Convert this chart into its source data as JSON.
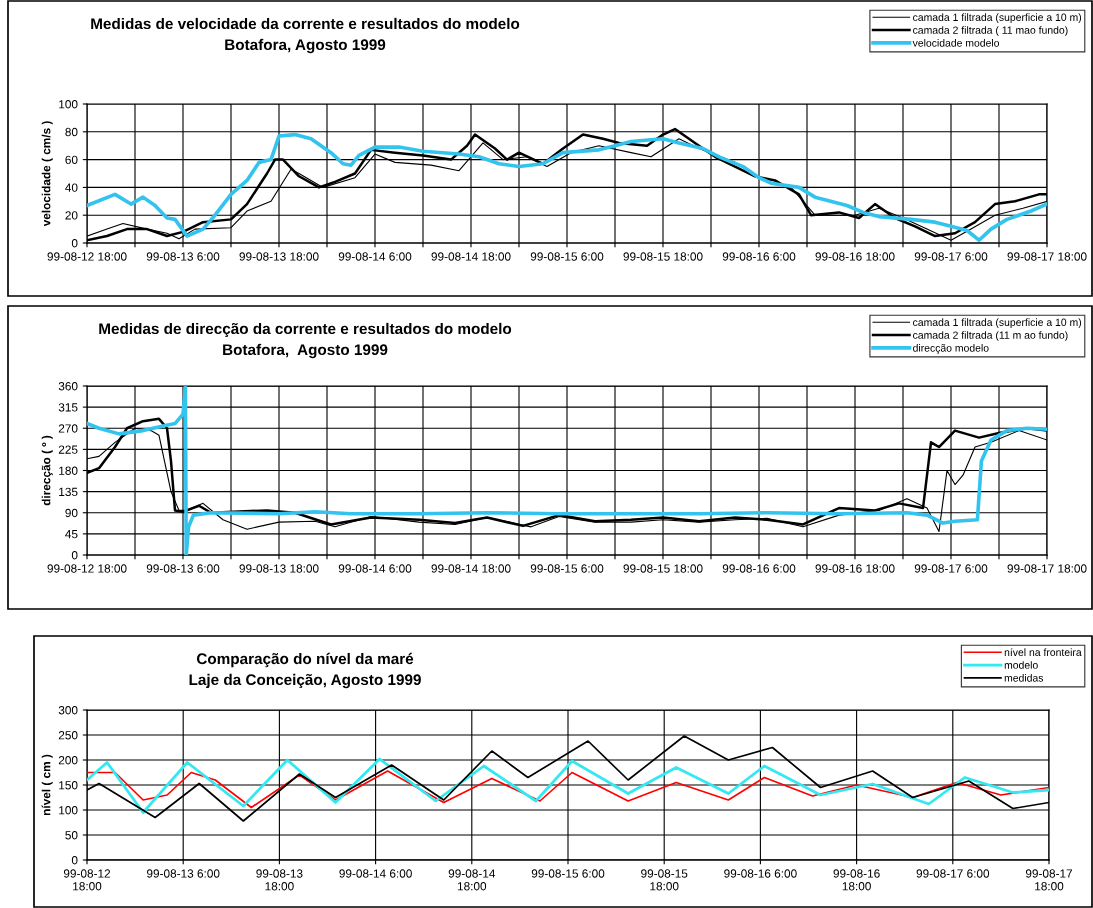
{
  "chart_data": [
    {
      "type": "line",
      "title": "Medidas de velocidade da corrente e resultados do modelo",
      "subtitle": "Botafora, Agosto 1999",
      "ylabel": "velocidade ( cm/s )",
      "xlim": [
        "1999-08-12T18:00",
        "1999-08-17T18:00"
      ],
      "xticks": [
        {
          "value": "1999-08-12T18:00",
          "label": "99-08-12 18:00"
        },
        {
          "value": "1999-08-13T00:00",
          "label": null
        },
        {
          "value": "1999-08-13T06:00",
          "label": "99-08-13 6:00"
        },
        {
          "value": "1999-08-13T12:00",
          "label": null
        },
        {
          "value": "1999-08-13T18:00",
          "label": "99-08-13 18:00"
        },
        {
          "value": "1999-08-14T00:00",
          "label": null
        },
        {
          "value": "1999-08-14T06:00",
          "label": "99-08-14 6:00"
        },
        {
          "value": "1999-08-14T12:00",
          "label": null
        },
        {
          "value": "1999-08-14T18:00",
          "label": "99-08-14 18:00"
        },
        {
          "value": "1999-08-15T00:00",
          "label": null
        },
        {
          "value": "1999-08-15T06:00",
          "label": "99-08-15 6:00"
        },
        {
          "value": "1999-08-15T12:00",
          "label": null
        },
        {
          "value": "1999-08-15T18:00",
          "label": "99-08-15 18:00"
        },
        {
          "value": "1999-08-16T00:00",
          "label": null
        },
        {
          "value": "1999-08-16T06:00",
          "label": "99-08-16 6:00"
        },
        {
          "value": "1999-08-16T12:00",
          "label": null
        },
        {
          "value": "1999-08-16T18:00",
          "label": "99-08-16 18:00"
        },
        {
          "value": "1999-08-17T00:00",
          "label": null
        },
        {
          "value": "1999-08-17T06:00",
          "label": "99-08-17 6:00"
        },
        {
          "value": "1999-08-17T12:00",
          "label": null
        },
        {
          "value": "1999-08-17T18:00",
          "label": "99-08-17 18:00"
        }
      ],
      "ylim": [
        0,
        100
      ],
      "yticks": [
        0,
        20,
        40,
        60,
        80,
        100
      ],
      "grid": true,
      "legend": "top right",
      "marker": "none",
      "line_style": "solid",
      "series": [
        {
          "name": "camada 1 filtrada (superficie a 10 m)",
          "color": "#000000",
          "x": [
            "1999-08-12T18:00",
            "1999-08-12T20:30",
            "1999-08-12T22:30",
            "1999-08-13T01:30",
            "1999-08-13T04:00",
            "1999-08-13T05:30",
            "1999-08-13T07:30",
            "1999-08-13T12:00",
            "1999-08-13T14:00",
            "1999-08-13T17:00",
            "1999-08-13T19:30",
            "1999-08-13T20:30",
            "1999-08-13T23:30",
            "1999-08-14T03:30",
            "1999-08-14T06:00",
            "1999-08-14T08:30",
            "1999-08-14T13:00",
            "1999-08-14T16:30",
            "1999-08-14T19:30",
            "1999-08-14T22:00",
            "1999-08-15T01:00",
            "1999-08-15T03:30",
            "1999-08-15T06:30",
            "1999-08-15T10:00",
            "1999-08-15T14:00",
            "1999-08-15T16:30",
            "1999-08-15T20:00",
            "1999-08-15T22:30",
            "1999-08-16T03:00",
            "1999-08-16T06:30",
            "1999-08-16T10:00",
            "1999-08-16T13:00",
            "1999-08-16T18:00",
            "1999-08-16T21:00",
            "1999-08-17T00:00",
            "1999-08-17T03:00",
            "1999-08-17T06:00",
            "1999-08-17T08:30",
            "1999-08-17T11:30",
            "1999-08-17T15:00",
            "1999-08-17T18:00"
          ],
          "values": [
            5,
            10,
            14,
            10,
            7,
            3,
            10,
            11,
            23,
            30,
            53,
            50,
            40,
            47,
            64,
            58,
            56,
            52,
            72,
            60,
            62,
            55,
            65,
            70,
            65,
            62,
            75,
            68,
            58,
            45,
            40,
            20,
            20,
            25,
            18,
            10,
            2,
            10,
            20,
            25,
            30
          ]
        },
        {
          "name": "camada 2 filtrada ( 11 mao fundo)",
          "color": "#000000",
          "x": [
            "1999-08-12T18:00",
            "1999-08-12T20:30",
            "1999-08-12T23:00",
            "1999-08-13T01:30",
            "1999-08-13T04:00",
            "1999-08-13T06:00",
            "1999-08-13T08:30",
            "1999-08-13T12:00",
            "1999-08-13T14:00",
            "1999-08-13T16:30",
            "1999-08-13T17:30",
            "1999-08-13T18:30",
            "1999-08-13T20:30",
            "1999-08-13T23:00",
            "1999-08-14T01:00",
            "1999-08-14T03:30",
            "1999-08-14T05:30",
            "1999-08-14T08:30",
            "1999-08-14T12:00",
            "1999-08-14T15:30",
            "1999-08-14T17:30",
            "1999-08-14T18:30",
            "1999-08-14T21:00",
            "1999-08-14T22:30",
            "1999-08-15T00:00",
            "1999-08-15T03:00",
            "1999-08-15T05:30",
            "1999-08-15T08:00",
            "1999-08-15T10:30",
            "1999-08-15T12:30",
            "1999-08-15T16:00",
            "1999-08-15T18:00",
            "1999-08-15T19:30",
            "1999-08-15T22:00",
            "1999-08-16T00:30",
            "1999-08-16T03:00",
            "1999-08-16T05:30",
            "1999-08-16T08:00",
            "1999-08-16T11:00",
            "1999-08-16T12:30",
            "1999-08-16T16:00",
            "1999-08-16T18:30",
            "1999-08-16T20:30",
            "1999-08-16T23:00",
            "1999-08-17T01:30",
            "1999-08-17T04:00",
            "1999-08-17T06:30",
            "1999-08-17T09:00",
            "1999-08-17T11:30",
            "1999-08-17T14:00",
            "1999-08-17T17:00",
            "1999-08-17T18:00"
          ],
          "values": [
            2,
            5,
            10,
            10,
            5,
            8,
            15,
            17,
            28,
            50,
            60,
            60,
            48,
            40,
            44,
            50,
            67,
            65,
            63,
            60,
            70,
            78,
            68,
            60,
            65,
            57,
            68,
            78,
            75,
            72,
            70,
            78,
            82,
            72,
            62,
            55,
            48,
            45,
            35,
            20,
            22,
            18,
            28,
            18,
            12,
            5,
            7,
            15,
            28,
            30,
            35,
            35
          ]
        },
        {
          "name": "velocidade modelo",
          "color": "#33c3ef",
          "x": [
            "1999-08-12T18:00",
            "1999-08-12T21:30",
            "1999-08-12T23:30",
            "1999-08-13T01:00",
            "1999-08-13T02:30",
            "1999-08-13T04:00",
            "1999-08-13T05:00",
            "1999-08-13T06:30",
            "1999-08-13T08:30",
            "1999-08-13T10:00",
            "1999-08-13T12:00",
            "1999-08-13T14:00",
            "1999-08-13T15:30",
            "1999-08-13T17:00",
            "1999-08-13T18:00",
            "1999-08-13T20:00",
            "1999-08-13T22:00",
            "1999-08-14T00:30",
            "1999-08-14T02:00",
            "1999-08-14T03:00",
            "1999-08-14T04:00",
            "1999-08-14T06:00",
            "1999-08-14T09:00",
            "1999-08-14T12:00",
            "1999-08-14T16:30",
            "1999-08-14T19:00",
            "1999-08-14T21:30",
            "1999-08-15T00:00",
            "1999-08-15T03:00",
            "1999-08-15T05:30",
            "1999-08-15T10:00",
            "1999-08-15T12:00",
            "1999-08-15T14:00",
            "1999-08-15T18:00",
            "1999-08-15T20:00",
            "1999-08-15T23:00",
            "1999-08-16T01:00",
            "1999-08-16T04:00",
            "1999-08-16T06:00",
            "1999-08-16T07:30",
            "1999-08-16T11:00",
            "1999-08-16T13:00",
            "1999-08-16T17:00",
            "1999-08-16T19:00",
            "1999-08-16T21:00",
            "1999-08-17T01:00",
            "1999-08-17T04:00",
            "1999-08-17T06:00",
            "1999-08-17T08:00",
            "1999-08-17T09:30",
            "1999-08-17T11:00",
            "1999-08-17T13:00",
            "1999-08-17T16:00",
            "1999-08-17T18:00"
          ],
          "values": [
            27,
            35,
            28,
            33,
            27,
            18,
            17,
            5,
            10,
            20,
            35,
            45,
            58,
            60,
            77,
            78,
            75,
            65,
            57,
            56,
            63,
            69,
            69,
            66,
            64,
            62,
            57,
            55,
            57,
            65,
            67,
            70,
            73,
            75,
            72,
            68,
            62,
            55,
            47,
            43,
            40,
            33,
            27,
            22,
            19,
            17,
            15,
            12,
            9,
            2,
            10,
            17,
            23,
            28
          ]
        }
      ]
    },
    {
      "type": "line",
      "title": "Medidas de direcção da corrente e resultados do modelo",
      "subtitle": "Botafora,  Agosto 1999",
      "ylabel": "direcção ( º )",
      "xlim": [
        "1999-08-12T18:00",
        "1999-08-17T18:00"
      ],
      "xticks": [
        {
          "value": "1999-08-12T18:00",
          "label": "99-08-12 18:00"
        },
        {
          "value": "1999-08-13T00:00",
          "label": null
        },
        {
          "value": "1999-08-13T06:00",
          "label": "99-08-13 6:00"
        },
        {
          "value": "1999-08-13T12:00",
          "label": null
        },
        {
          "value": "1999-08-13T18:00",
          "label": "99-08-13 18:00"
        },
        {
          "value": "1999-08-14T00:00",
          "label": null
        },
        {
          "value": "1999-08-14T06:00",
          "label": "99-08-14 6:00"
        },
        {
          "value": "1999-08-14T12:00",
          "label": null
        },
        {
          "value": "1999-08-14T18:00",
          "label": "99-08-14 18:00"
        },
        {
          "value": "1999-08-15T00:00",
          "label": null
        },
        {
          "value": "1999-08-15T06:00",
          "label": "99-08-15 6:00"
        },
        {
          "value": "1999-08-15T12:00",
          "label": null
        },
        {
          "value": "1999-08-15T18:00",
          "label": "99-08-15 18:00"
        },
        {
          "value": "1999-08-16T00:00",
          "label": null
        },
        {
          "value": "1999-08-16T06:00",
          "label": "99-08-16 6:00"
        },
        {
          "value": "1999-08-16T12:00",
          "label": null
        },
        {
          "value": "1999-08-16T18:00",
          "label": "99-08-16 18:00"
        },
        {
          "value": "1999-08-17T00:00",
          "label": null
        },
        {
          "value": "1999-08-17T06:00",
          "label": "99-08-17 6:00"
        },
        {
          "value": "1999-08-17T12:00",
          "label": null
        },
        {
          "value": "1999-08-17T18:00",
          "label": "99-08-17 18:00"
        }
      ],
      "ylim": [
        0,
        360
      ],
      "yticks": [
        0,
        45,
        90,
        135,
        180,
        225,
        270,
        315,
        360
      ],
      "grid": true,
      "legend": "top right",
      "marker": "none",
      "line_style": "solid",
      "series": [
        {
          "name": "camada 1 filtrada (superficie a 10 m)",
          "color": "#000000",
          "x": [
            "1999-08-12T18:00",
            "1999-08-12T19:30",
            "1999-08-12T21:30",
            "1999-08-13T00:00",
            "1999-08-13T02:00",
            "1999-08-13T03:00",
            "1999-08-13T04:30",
            "1999-08-13T05:30",
            "1999-08-13T06:30",
            "1999-08-13T08:30",
            "1999-08-13T11:00",
            "1999-08-13T14:00",
            "1999-08-13T18:00",
            "1999-08-13T22:30",
            "1999-08-14T01:00",
            "1999-08-14T05:30",
            "1999-08-14T11:30",
            "1999-08-14T16:00",
            "1999-08-14T20:00",
            "1999-08-15T01:30",
            "1999-08-15T05:00",
            "1999-08-15T09:30",
            "1999-08-15T14:00",
            "1999-08-15T18:00",
            "1999-08-15T22:30",
            "1999-08-16T03:00",
            "1999-08-16T07:00",
            "1999-08-16T11:30",
            "1999-08-16T16:00",
            "1999-08-16T21:00",
            "1999-08-17T00:30",
            "1999-08-17T03:00",
            "1999-08-17T04:30",
            "1999-08-17T05:30",
            "1999-08-17T06:30",
            "1999-08-17T07:30",
            "1999-08-17T09:00",
            "1999-08-17T11:00",
            "1999-08-17T14:30",
            "1999-08-17T18:00"
          ],
          "values": [
            205,
            210,
            240,
            270,
            265,
            255,
            135,
            95,
            95,
            110,
            75,
            55,
            70,
            72,
            60,
            82,
            70,
            65,
            80,
            60,
            82,
            70,
            70,
            75,
            70,
            75,
            78,
            60,
            85,
            95,
            120,
            100,
            50,
            180,
            150,
            170,
            230,
            240,
            265,
            245
          ]
        },
        {
          "name": "camada 2 filtrada (11 m ao fundo)",
          "color": "#000000",
          "x": [
            "1999-08-12T18:00",
            "1999-08-12T19:30",
            "1999-08-12T21:30",
            "1999-08-12T23:00",
            "1999-08-13T01:00",
            "1999-08-13T03:00",
            "1999-08-13T04:00",
            "1999-08-13T04:30",
            "1999-08-13T05:00",
            "1999-08-13T06:00",
            "1999-08-13T08:00",
            "1999-08-13T09:30",
            "1999-08-13T16:30",
            "1999-08-13T20:00",
            "1999-08-14T00:30",
            "1999-08-14T05:30",
            "1999-08-14T11:30",
            "1999-08-14T16:00",
            "1999-08-14T20:00",
            "1999-08-15T00:30",
            "1999-08-15T05:00",
            "1999-08-15T09:30",
            "1999-08-15T14:00",
            "1999-08-15T18:00",
            "1999-08-15T22:30",
            "1999-08-16T03:00",
            "1999-08-16T07:00",
            "1999-08-16T11:30",
            "1999-08-16T16:00",
            "1999-08-16T20:30",
            "1999-08-16T23:30",
            "1999-08-17T02:30",
            "1999-08-17T03:30",
            "1999-08-17T04:30",
            "1999-08-17T06:30",
            "1999-08-17T09:30",
            "1999-08-17T12:00",
            "1999-08-17T15:30",
            "1999-08-17T18:00"
          ],
          "values": [
            175,
            185,
            230,
            270,
            285,
            290,
            270,
            200,
            95,
            92,
            105,
            90,
            95,
            90,
            65,
            80,
            75,
            68,
            80,
            62,
            85,
            72,
            75,
            80,
            72,
            80,
            75,
            65,
            100,
            95,
            110,
            100,
            240,
            230,
            265,
            250,
            260,
            270,
            265
          ]
        },
        {
          "name": "direcção modelo",
          "color": "#33c3ef",
          "x": [
            "1999-08-12T18:00",
            "1999-08-12T19:30",
            "1999-08-12T22:00",
            "1999-08-13T01:00",
            "1999-08-13T03:30",
            "1999-08-13T05:00",
            "1999-08-13T06:00",
            "1999-08-13T06:18",
            "1999-08-13T06:24",
            "1999-08-13T06:42",
            "1999-08-13T07:18",
            "1999-08-13T09:30",
            "1999-08-13T18:00",
            "1999-08-13T22:30",
            "1999-08-14T03:00",
            "1999-08-14T11:30",
            "1999-08-14T20:00",
            "1999-08-15T05:00",
            "1999-08-15T14:00",
            "1999-08-15T22:30",
            "1999-08-16T07:00",
            "1999-08-16T16:00",
            "1999-08-17T00:30",
            "1999-08-17T03:00",
            "1999-08-17T05:00",
            "1999-08-17T06:30",
            "1999-08-17T09:18",
            "1999-08-17T09:48",
            "1999-08-17T11:00",
            "1999-08-17T13:00",
            "1999-08-17T15:30",
            "1999-08-17T18:00"
          ],
          "values": [
            280,
            270,
            258,
            265,
            275,
            280,
            300,
            360,
            0,
            60,
            85,
            90,
            88,
            92,
            88,
            88,
            90,
            88,
            88,
            88,
            90,
            88,
            90,
            85,
            68,
            72,
            75,
            200,
            245,
            265,
            270,
            268
          ]
        }
      ]
    },
    {
      "type": "line",
      "title": "Comparação do nível da maré",
      "subtitle": "Laje da Conceição, Agosto 1999",
      "ylabel": "nível ( cm )",
      "xlim": [
        "1999-08-12T18:00",
        "1999-08-17T18:00"
      ],
      "xticks": [
        {
          "value": "1999-08-12T18:00",
          "label": "99-08-12\n18:00"
        },
        {
          "value": "1999-08-13T06:00",
          "label": "99-08-13 6:00"
        },
        {
          "value": "1999-08-13T18:00",
          "label": "99-08-13\n18:00"
        },
        {
          "value": "1999-08-14T06:00",
          "label": "99-08-14 6:00"
        },
        {
          "value": "1999-08-14T18:00",
          "label": "99-08-14\n18:00"
        },
        {
          "value": "1999-08-15T06:00",
          "label": "99-08-15 6:00"
        },
        {
          "value": "1999-08-15T18:00",
          "label": "99-08-15\n18:00"
        },
        {
          "value": "1999-08-16T06:00",
          "label": "99-08-16 6:00"
        },
        {
          "value": "1999-08-16T18:00",
          "label": "99-08-16\n18:00"
        },
        {
          "value": "1999-08-17T06:00",
          "label": "99-08-17 6:00"
        },
        {
          "value": "1999-08-17T18:00",
          "label": "99-08-17\n18:00"
        }
      ],
      "ylim": [
        0,
        300
      ],
      "yticks": [
        0,
        50,
        100,
        150,
        200,
        250,
        300
      ],
      "grid": true,
      "legend": "top right",
      "marker": "none",
      "line_style": "solid",
      "series": [
        {
          "name": "nível na fronteira",
          "color": "#ff0000",
          "x": [
            "1999-08-12T18:00",
            "1999-08-12T21:30",
            "1999-08-13T01:00",
            "1999-08-13T04:00",
            "1999-08-13T07:00",
            "1999-08-13T10:00",
            "1999-08-13T14:30",
            "1999-08-13T20:30",
            "1999-08-14T01:00",
            "1999-08-14T07:30",
            "1999-08-14T14:30",
            "1999-08-14T20:30",
            "1999-08-15T02:30",
            "1999-08-15T06:30",
            "1999-08-15T13:30",
            "1999-08-15T19:30",
            "1999-08-16T02:00",
            "1999-08-16T06:30",
            "1999-08-16T12:30",
            "1999-08-16T18:00",
            "1999-08-17T01:00",
            "1999-08-17T06:30",
            "1999-08-17T12:00",
            "1999-08-17T18:00"
          ],
          "values": [
            175,
            175,
            120,
            130,
            175,
            160,
            105,
            170,
            120,
            178,
            115,
            163,
            118,
            175,
            118,
            155,
            120,
            165,
            128,
            150,
            125,
            155,
            130,
            145
          ]
        },
        {
          "name": "modelo",
          "color": "#33e8f0",
          "x": [
            "1999-08-12T18:00",
            "1999-08-12T20:30",
            "1999-08-13T01:00",
            "1999-08-13T06:30",
            "1999-08-13T13:30",
            "1999-08-13T19:00",
            "1999-08-14T01:00",
            "1999-08-14T06:30",
            "1999-08-14T13:30",
            "1999-08-14T19:30",
            "1999-08-15T02:00",
            "1999-08-15T06:30",
            "1999-08-15T13:30",
            "1999-08-15T19:30",
            "1999-08-16T02:00",
            "1999-08-16T06:30",
            "1999-08-16T13:30",
            "1999-08-16T20:00",
            "1999-08-17T03:00",
            "1999-08-17T07:30",
            "1999-08-17T13:30",
            "1999-08-17T18:00"
          ],
          "values": [
            160,
            195,
            95,
            195,
            108,
            200,
            115,
            202,
            118,
            188,
            118,
            198,
            133,
            185,
            133,
            188,
            130,
            152,
            112,
            165,
            135,
            140
          ]
        },
        {
          "name": "medidas",
          "color": "#000000",
          "x": [
            "1999-08-12T18:00",
            "1999-08-12T19:30",
            "1999-08-13T02:30",
            "1999-08-13T08:00",
            "1999-08-13T13:30",
            "1999-08-13T20:30",
            "1999-08-14T01:00",
            "1999-08-14T08:00",
            "1999-08-14T14:30",
            "1999-08-14T20:30",
            "1999-08-15T01:00",
            "1999-08-15T08:30",
            "1999-08-15T13:30",
            "1999-08-15T20:30",
            "1999-08-16T02:00",
            "1999-08-16T07:30",
            "1999-08-16T13:30",
            "1999-08-16T20:00",
            "1999-08-17T01:00",
            "1999-08-17T08:00",
            "1999-08-17T13:30",
            "1999-08-17T18:00"
          ],
          "values": [
            140,
            153,
            85,
            153,
            78,
            172,
            125,
            190,
            120,
            218,
            165,
            238,
            160,
            248,
            200,
            225,
            145,
            178,
            125,
            158,
            103,
            115
          ]
        }
      ]
    }
  ]
}
